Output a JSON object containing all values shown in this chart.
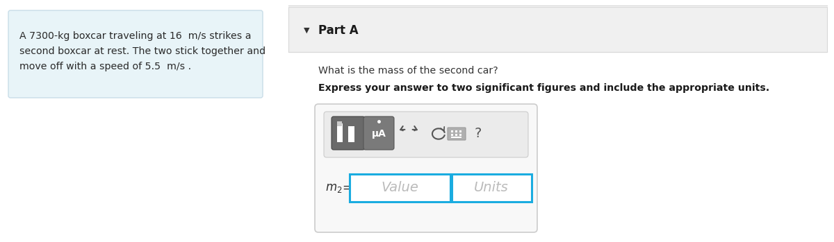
{
  "bg_color": "#ffffff",
  "problem_box_color": "#e8f4f8",
  "problem_box_border": "#c8dde8",
  "problem_text_lines": [
    "A 7300-kg boxcar traveling at 16  m/s strikes a",
    "second boxcar at rest. The two stick together and",
    "move off with a speed of 5.5  m/s ."
  ],
  "part_section_bg": "#f0f0f0",
  "part_section_border": "#d8d8d8",
  "part_label": "Part A",
  "question_text": "What is the mass of the second car?",
  "instruction_text": "Express your answer to two significant figures and include the appropriate units.",
  "input_box_border": "#1aace0",
  "input_value_placeholder": "Value",
  "input_units_placeholder": "Units",
  "button1_bg": "#6a6a6a",
  "button2_bg": "#7a7a7a",
  "toolbar_bg": "#ebebeb",
  "toolbar_border": "#cccccc",
  "outer_box_bg": "#f8f8f8",
  "outer_box_border": "#cccccc",
  "question_mark": "?",
  "separator_color": "#d0d0d0",
  "arrow_color": "#444444",
  "icon_color": "#555555"
}
